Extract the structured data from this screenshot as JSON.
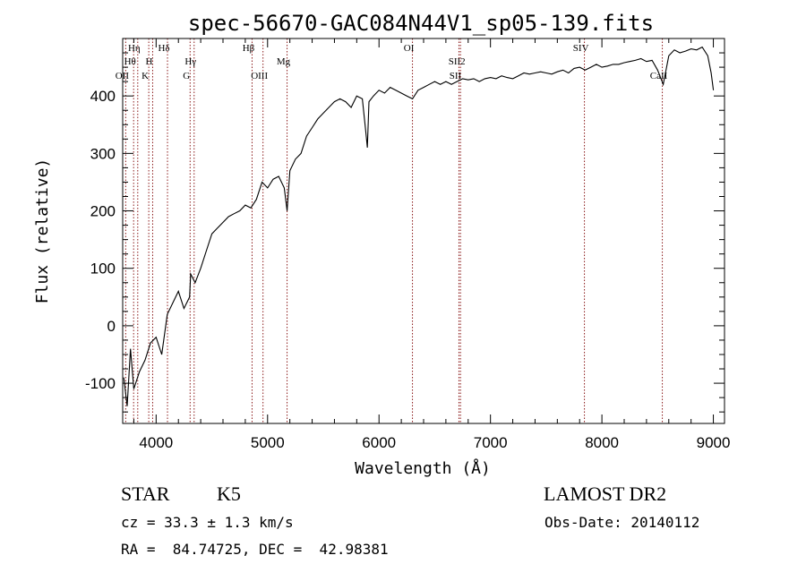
{
  "chart_data": {
    "type": "line",
    "title": "spec-56670-GAC084N44V1_sp05-139.fits",
    "xlabel": "Wavelength (Å)",
    "ylabel": "Flux (relative)",
    "xlim": [
      3700,
      9100
    ],
    "ylim": [
      -170,
      500
    ],
    "xticks": [
      4000,
      5000,
      6000,
      7000,
      8000,
      9000
    ],
    "yticks": [
      -100,
      0,
      100,
      200,
      300,
      400
    ],
    "grid": false,
    "series": [
      {
        "x": [
          3710,
          3740,
          3770,
          3800,
          3850,
          3900,
          3950,
          4000,
          4050,
          4100,
          4150,
          4200,
          4250,
          4300,
          4310,
          4350,
          4400,
          4450,
          4500,
          4550,
          4600,
          4650,
          4700,
          4750,
          4800,
          4850,
          4900,
          4950,
          5000,
          5050,
          5100,
          5150,
          5175,
          5200,
          5250,
          5300,
          5350,
          5400,
          5450,
          5500,
          5550,
          5600,
          5650,
          5700,
          5750,
          5800,
          5850,
          5880,
          5895,
          5910,
          5950,
          6000,
          6050,
          6100,
          6150,
          6200,
          6250,
          6300,
          6350,
          6400,
          6450,
          6500,
          6550,
          6600,
          6650,
          6700,
          6750,
          6800,
          6850,
          6900,
          6950,
          7000,
          7050,
          7100,
          7150,
          7200,
          7250,
          7300,
          7350,
          7400,
          7450,
          7500,
          7550,
          7600,
          7650,
          7700,
          7750,
          7800,
          7850,
          7900,
          7950,
          8000,
          8050,
          8100,
          8150,
          8200,
          8250,
          8300,
          8350,
          8400,
          8450,
          8500,
          8550,
          8600,
          8650,
          8700,
          8750,
          8800,
          8850,
          8900,
          8950,
          8980,
          9000
        ],
        "y": [
          -90,
          -140,
          -40,
          -110,
          -80,
          -60,
          -30,
          -20,
          -50,
          20,
          40,
          60,
          30,
          50,
          90,
          75,
          100,
          130,
          160,
          170,
          180,
          190,
          195,
          200,
          210,
          205,
          220,
          250,
          240,
          255,
          260,
          240,
          200,
          270,
          290,
          300,
          330,
          345,
          360,
          370,
          380,
          390,
          395,
          390,
          380,
          400,
          395,
          340,
          310,
          390,
          400,
          410,
          405,
          415,
          410,
          405,
          400,
          395,
          410,
          415,
          420,
          425,
          420,
          425,
          420,
          425,
          430,
          428,
          430,
          425,
          430,
          432,
          430,
          435,
          432,
          430,
          435,
          440,
          438,
          440,
          442,
          440,
          438,
          442,
          445,
          440,
          448,
          450,
          445,
          450,
          455,
          450,
          452,
          455,
          455,
          458,
          460,
          462,
          465,
          460,
          462,
          445,
          420,
          470,
          480,
          475,
          478,
          482,
          480,
          485,
          470,
          440,
          410
        ]
      }
    ],
    "lines": [
      {
        "label": "OII",
        "x": 3727
      },
      {
        "label": "Hθ",
        "x": 3798
      },
      {
        "label": "Hη",
        "x": 3835
      },
      {
        "label": "K",
        "x": 3934
      },
      {
        "label": "H",
        "x": 3969
      },
      {
        "label": "Hδ",
        "x": 4102
      },
      {
        "label": "G",
        "x": 4305
      },
      {
        "label": "Hγ",
        "x": 4341
      },
      {
        "label": "Hβ",
        "x": 4861
      },
      {
        "label": "OIII",
        "x": 4959
      },
      {
        "label": "Mg",
        "x": 5175
      },
      {
        "label": "OI",
        "x": 6300
      },
      {
        "label": "SII",
        "x": 6717
      },
      {
        "label": "SII2",
        "x": 6731
      },
      {
        "label": "SIV",
        "x": 7843
      },
      {
        "label": "CaII",
        "x": 8542
      }
    ]
  },
  "info": {
    "object_type": "STAR",
    "subclass": "K5",
    "survey": "LAMOST DR2",
    "cz": "cz = 33.3 ± 1.3 km/s",
    "obs_date": "Obs-Date: 20140112",
    "coords": "RA =  84.74725, DEC =  42.98381"
  }
}
